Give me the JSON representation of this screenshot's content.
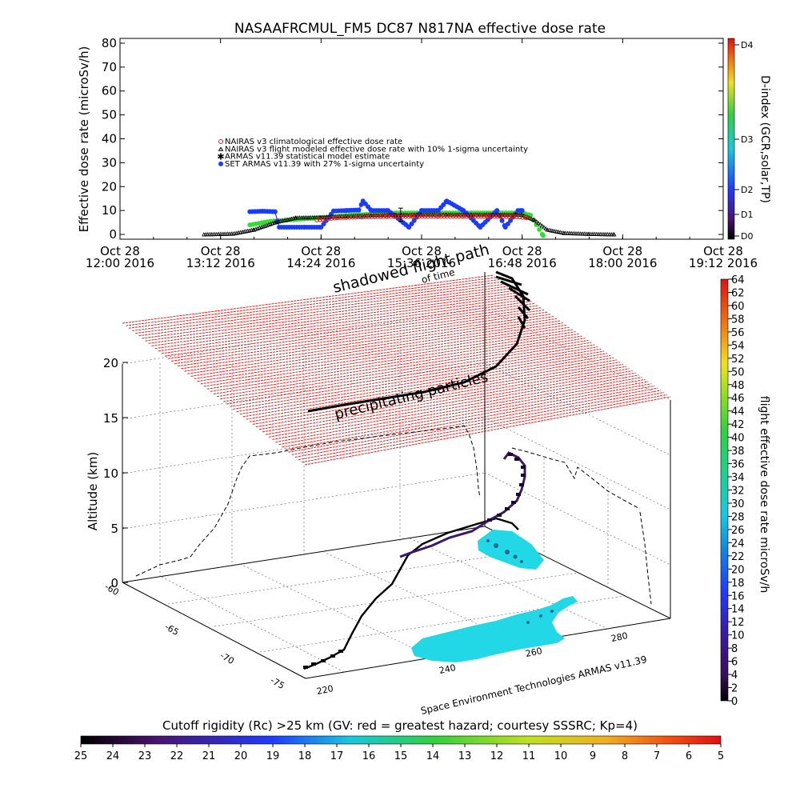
{
  "chart_data": [
    {
      "type": "scatter",
      "title": "NASAAFRCMUL_FM5 DC87 N817NA effective dose rate",
      "ylabel": "Effective dose rate (microSv/h)",
      "ylim": [
        -2,
        82
      ],
      "yticks": [
        0,
        10,
        20,
        30,
        40,
        50,
        60,
        70,
        80
      ],
      "x_time_range_hours": [
        12.0,
        19.2
      ],
      "xticks": [
        {
          "t": 12.0,
          "line1": "Oct 28",
          "line2": "12:00 2016"
        },
        {
          "t": 13.2,
          "line1": "Oct 28",
          "line2": "13:12 2016"
        },
        {
          "t": 14.4,
          "line1": "Oct 28",
          "line2": "14:24 2016"
        },
        {
          "t": 15.6,
          "line1": "Oct 28",
          "line2": "15:36 2016"
        },
        {
          "t": 16.8,
          "line1": "Oct 28",
          "line2": "16:48 2016"
        },
        {
          "t": 18.0,
          "line1": "Oct 28",
          "line2": "18:00 2016"
        },
        {
          "t": 19.2,
          "line1": "Oct 28",
          "line2": "19:12 2016"
        }
      ],
      "legend": [
        {
          "name": "NAIRAS v3 climatological effective dose rate",
          "color": "#d42020",
          "marker": "circle"
        },
        {
          "name": "NAIRAS v3 flight modeled effective dose rate with 10% 1-sigma uncertainty",
          "color": "#000000",
          "marker": "triangle"
        },
        {
          "name": "ARMAS v11.39 statistical model estimate",
          "color": "#33dd33",
          "marker": "star"
        },
        {
          "name": "SET ARMAS v11.39 with 27% 1-sigma uncertainty",
          "color": "#1a3cff",
          "marker": "filled-circle"
        }
      ],
      "series": [
        {
          "name": "NAIRAS v3 flight modeled effective dose rate with 10% 1-sigma uncertainty",
          "t": [
            13.0,
            13.35,
            13.6,
            13.85,
            14.1,
            14.4,
            14.7,
            15.0,
            15.3,
            15.6,
            15.9,
            16.2,
            16.5,
            16.8,
            16.95,
            17.1,
            17.3,
            17.6,
            17.9
          ],
          "values": [
            0,
            0.3,
            2,
            5,
            7,
            7.2,
            7.6,
            8,
            8.2,
            8.3,
            8.3,
            8.3,
            8.3,
            8.2,
            6,
            2,
            0.6,
            0.2,
            0
          ]
        },
        {
          "name": "NAIRAS v3 climatological effective dose rate",
          "t": [
            14.35,
            14.6,
            14.9,
            15.2,
            15.5,
            15.8,
            16.1,
            16.4,
            16.7,
            16.85
          ],
          "values": [
            6,
            7,
            7.3,
            7.5,
            7.6,
            7.6,
            7.6,
            7.6,
            7.5,
            7
          ]
        },
        {
          "name": "ARMAS v11.39 statistical model estimate",
          "t": [
            13.55,
            13.8,
            14.0,
            14.2,
            14.4,
            14.7,
            15.0,
            15.3,
            15.6,
            15.9,
            16.2,
            16.5,
            16.8,
            16.9,
            17.05
          ],
          "values": [
            4,
            5.5,
            6,
            6.5,
            7,
            8,
            8.5,
            9,
            9,
            9,
            9,
            9,
            9,
            8,
            -0.5
          ]
        },
        {
          "name": "SET ARMAS v11.39 with 27% 1-sigma uncertainty",
          "t": [
            13.55,
            13.7,
            13.85,
            13.9,
            14.2,
            14.4,
            14.55,
            14.7,
            14.85,
            14.9,
            15.0,
            15.2,
            15.45,
            15.6,
            15.8,
            15.9,
            16.1,
            16.3,
            16.5,
            16.6,
            16.75,
            16.8
          ],
          "values": [
            9.5,
            9.7,
            9.5,
            3,
            3,
            3,
            9.8,
            10,
            10.2,
            14,
            10,
            10,
            3,
            10,
            10,
            14,
            10,
            3,
            10,
            3,
            10,
            10
          ]
        }
      ],
      "right_axis": {
        "label": "D-index (GCR,solar,TP)",
        "ticks": [
          "D0",
          "D1",
          "D2",
          "D3",
          "D4"
        ]
      }
    },
    {
      "type": "scatter",
      "zlabel": "Altitude (km)",
      "zticks": [
        0,
        5,
        10,
        15,
        20
      ],
      "lat_ticks": [
        -60,
        -65,
        -70,
        -75
      ],
      "lon_ticks": [
        220,
        240,
        260,
        280
      ],
      "annotations": [
        "shadowed flight path",
        "of time",
        "precipitating particles"
      ],
      "credit": "Space Environment Technologies ARMAS v11.39",
      "colorbar": {
        "label": "flight effective dose rate microSv/h",
        "ticks": [
          0,
          2,
          4,
          6,
          8,
          10,
          12,
          14,
          16,
          18,
          20,
          22,
          24,
          26,
          28,
          30,
          32,
          34,
          36,
          38,
          40,
          42,
          44,
          46,
          48,
          50,
          52,
          54,
          56,
          58,
          60,
          62,
          64
        ]
      },
      "flight_track": [
        {
          "lon": 222,
          "lat": -74,
          "alt": 0,
          "dose": 0
        },
        {
          "lon": 228,
          "lat": -71,
          "alt": 1,
          "dose": 1
        },
        {
          "lon": 235,
          "lat": -68,
          "alt": 3.5,
          "dose": 3
        },
        {
          "lon": 245,
          "lat": -65,
          "alt": 4.5,
          "dose": 5
        },
        {
          "lon": 255,
          "lat": -63,
          "alt": 6,
          "dose": 6
        },
        {
          "lon": 262,
          "lat": -62,
          "alt": 10,
          "dose": 6
        },
        {
          "lon": 270,
          "lat": -64,
          "alt": 11,
          "dose": 5
        }
      ],
      "cutoff_colorbar": {
        "label": "Cutoff rigidity (Rc) >25 km (GV: red = greatest hazard; courtesy SSSRC; Kp=4)",
        "ticks": [
          25,
          24,
          23,
          22,
          21,
          20,
          19,
          18,
          17,
          16,
          15,
          14,
          13,
          12,
          11,
          10,
          9,
          8,
          7,
          6,
          5
        ]
      }
    }
  ]
}
